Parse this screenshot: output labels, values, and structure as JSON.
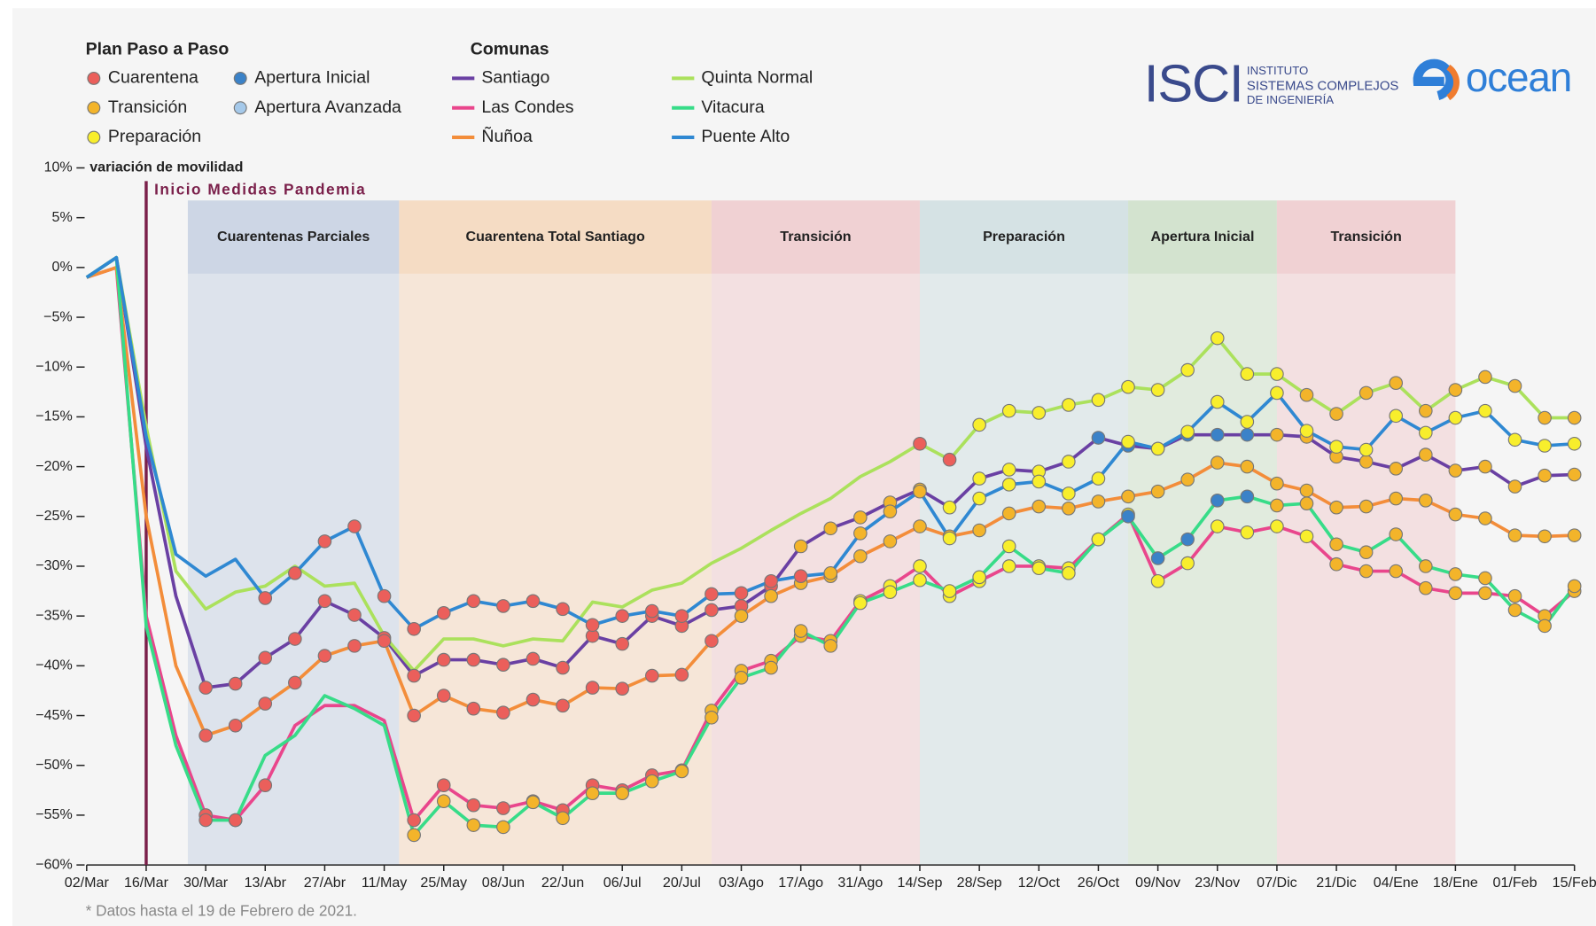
{
  "logos": {
    "isci": "ISCI",
    "isci_lines": [
      "INSTITUTO",
      "SISTEMAS COMPLEJOS",
      "DE INGENIERÍA"
    ],
    "ocean": "ocean"
  },
  "chart_data": {
    "type": "line",
    "note": "* Datos hasta el 19 de Febrero de 2021.",
    "y_label": "variación de movilidad",
    "plan_legend": {
      "title": "Plan Paso a Paso",
      "items": [
        {
          "name": "Cuarentena",
          "color": "#eb5f5b"
        },
        {
          "name": "Transición",
          "color": "#f3b42a"
        },
        {
          "name": "Preparación",
          "color": "#f8ee2c"
        },
        {
          "name": "Apertura Inicial",
          "color": "#3b82c8"
        },
        {
          "name": "Apertura Avanzada",
          "color": "#a5c9ea"
        }
      ]
    },
    "series_legend_title": "Comunas",
    "event": {
      "label": "Inicio Medidas Pandemia",
      "at": 2,
      "color": "#7a1f4a"
    },
    "bands": [
      {
        "label": "Cuarentenas Parciales",
        "start": 3.4,
        "end": 10.5,
        "color": "#c9d3e3"
      },
      {
        "label": "Cuarentena Total Santiago",
        "start": 10.5,
        "end": 21,
        "color": "#f5d9bf"
      },
      {
        "label": "Transición",
        "start": 21,
        "end": 28,
        "color": "#f0cdcf"
      },
      {
        "label": "Preparación",
        "start": 28,
        "end": 35,
        "color": "#d2e0e2"
      },
      {
        "label": "Apertura Inicial",
        "start": 35,
        "end": 40,
        "color": "#cfe1cb"
      },
      {
        "label": "Transición",
        "start": 40,
        "end": 46,
        "color": "#f0cdcf"
      }
    ],
    "categories": [
      "02/Mar",
      null,
      "16/Mar",
      null,
      "30/Mar",
      null,
      "13/Abr",
      null,
      "27/Abr",
      null,
      "11/May",
      null,
      "25/May",
      null,
      "08/Jun",
      null,
      "22/Jun",
      null,
      "06/Jul",
      null,
      "20/Jul",
      null,
      "03/Ago",
      null,
      "17/Ago",
      null,
      "31/Ago",
      null,
      "14/Sep",
      null,
      "28/Sep",
      null,
      "12/Oct",
      null,
      "26/Oct",
      null,
      "09/Nov",
      null,
      "23/Nov",
      null,
      "07/Dic",
      null,
      "21/Dic",
      null,
      "04/Ene",
      null,
      "18/Ene",
      null,
      "01/Feb",
      null,
      "15/Feb"
    ],
    "ylim": [
      -60,
      10
    ],
    "yticks": [
      {
        "value": 10,
        "label": "10%"
      },
      {
        "value": 5,
        "label": "5%"
      },
      {
        "value": 0,
        "label": "0%"
      },
      {
        "value": -5,
        "label": "−5%"
      },
      {
        "value": -10,
        "label": "−10%"
      },
      {
        "value": -15,
        "label": "−15%"
      },
      {
        "value": -20,
        "label": "−20%"
      },
      {
        "value": -25,
        "label": "−25%"
      },
      {
        "value": -30,
        "label": "−30%"
      },
      {
        "value": -35,
        "label": "−35%"
      },
      {
        "value": -40,
        "label": "−40%"
      },
      {
        "value": -45,
        "label": "−45%"
      },
      {
        "value": -50,
        "label": "−50%"
      },
      {
        "value": -55,
        "label": "−55%"
      },
      {
        "value": -60,
        "label": "−60%"
      }
    ],
    "series": [
      {
        "name": "Santiago",
        "color": "#6a40a3",
        "values": [
          -1,
          1,
          -18,
          -33,
          -42.2,
          -41.8,
          -39.2,
          -37.3,
          -33.5,
          -34.9,
          -37.2,
          -41,
          -39.4,
          -39.4,
          -39.9,
          -39.3,
          -40.2,
          -37,
          -37.8,
          -35,
          -36,
          -34.4,
          -34,
          -32,
          -28,
          -26.2,
          -25.1,
          -23.6,
          -22.3,
          -24.1,
          -21.2,
          -20.3,
          -20.5,
          -19.5,
          -17.1,
          -17.9,
          -18.2,
          -16.8,
          -16.8,
          -16.8,
          -16.8,
          -17,
          -19,
          -19.5,
          -20.2,
          -18.8,
          -20.4,
          -20,
          -22,
          -20.9,
          -20.8
        ],
        "phases": [
          null,
          null,
          null,
          null,
          0,
          0,
          0,
          0,
          0,
          0,
          0,
          0,
          0,
          0,
          0,
          0,
          0,
          0,
          0,
          0,
          0,
          0,
          0,
          0,
          1,
          1,
          1,
          1,
          1,
          2,
          2,
          2,
          2,
          2,
          3,
          3,
          3,
          3,
          3,
          3,
          1,
          1,
          1,
          1,
          1,
          1,
          1,
          1,
          1,
          1,
          1
        ]
      },
      {
        "name": "Las Condes",
        "color": "#e9468c",
        "values": [
          -1,
          0,
          -35,
          -47,
          -55,
          -55.5,
          -52,
          -46,
          -44,
          -44,
          -45.5,
          -55.5,
          -52,
          -54,
          -54.3,
          -53.6,
          -54.5,
          -52,
          -52.5,
          -51,
          -50.5,
          -44.5,
          -40.5,
          -39.5,
          -37,
          -37.5,
          -33.5,
          -32,
          -30,
          -33,
          -31.5,
          -30,
          -30,
          -30.2,
          -27.3,
          -24.8,
          -31.5,
          -29.7,
          -26,
          -26.6,
          -26,
          -27,
          -29.8,
          -30.5,
          -30.5,
          -32.2,
          -32.7,
          -32.7,
          -33,
          -35,
          -32.5
        ],
        "phases": [
          null,
          null,
          null,
          null,
          0,
          0,
          0,
          null,
          null,
          null,
          null,
          0,
          0,
          0,
          0,
          0,
          0,
          0,
          0,
          0,
          0,
          1,
          1,
          1,
          1,
          1,
          2,
          2,
          2,
          2,
          2,
          2,
          2,
          2,
          2,
          2,
          2,
          2,
          2,
          2,
          2,
          2,
          1,
          1,
          1,
          1,
          1,
          1,
          1,
          1,
          1
        ]
      },
      {
        "name": "Ñuñoa",
        "color": "#f38d3a",
        "values": [
          -1,
          0,
          -25,
          -40,
          -47,
          -46,
          -43.8,
          -41.7,
          -39,
          -38,
          -37.5,
          -45,
          -43,
          -44.3,
          -44.7,
          -43.4,
          -44,
          -42.2,
          -42.3,
          -41,
          -40.9,
          -37.5,
          -35,
          -33,
          -31.7,
          -31,
          -29,
          -27.5,
          -26,
          -27,
          -26.4,
          -24.7,
          -24,
          -24.2,
          -23.5,
          -23,
          -22.5,
          -21.3,
          -19.6,
          -20,
          -21.7,
          -22.4,
          -24.1,
          -24,
          -23.2,
          -23.4,
          -24.8,
          -25.2,
          -26.9,
          -27,
          -26.9
        ],
        "phases": [
          null,
          null,
          null,
          null,
          0,
          0,
          0,
          0,
          0,
          0,
          0,
          0,
          0,
          0,
          0,
          0,
          0,
          0,
          0,
          0,
          0,
          0,
          1,
          1,
          1,
          1,
          1,
          1,
          1,
          1,
          1,
          1,
          1,
          1,
          1,
          1,
          1,
          1,
          1,
          1,
          1,
          1,
          1,
          1,
          1,
          1,
          1,
          1,
          1,
          1,
          1
        ]
      },
      {
        "name": "Quinta Normal",
        "color": "#abe15c",
        "values": [
          -1,
          1,
          -16,
          -30.5,
          -34.3,
          -32.6,
          -32,
          -30,
          -32,
          -31.7,
          -37,
          -40.5,
          -37.3,
          -37.3,
          -38,
          -37.3,
          -37.5,
          -33.6,
          -34.1,
          -32.4,
          -31.7,
          -29.7,
          -28.2,
          -26.4,
          -24.7,
          -23.2,
          -21,
          -19.5,
          -17.7,
          -19.3,
          -15.8,
          -14.4,
          -14.6,
          -13.8,
          -13.3,
          -12,
          -12.3,
          -10.3,
          -7.1,
          -10.7,
          -10.7,
          -12.8,
          -14.7,
          -12.6,
          -11.6,
          -14.4,
          -12.3,
          -11,
          -11.9,
          -15.1,
          -15.1
        ],
        "phases": [
          null,
          null,
          null,
          null,
          null,
          null,
          null,
          null,
          null,
          null,
          null,
          null,
          null,
          null,
          null,
          null,
          null,
          null,
          null,
          null,
          null,
          null,
          null,
          null,
          null,
          null,
          null,
          null,
          0,
          0,
          2,
          2,
          2,
          2,
          2,
          2,
          2,
          2,
          2,
          2,
          2,
          1,
          1,
          1,
          1,
          1,
          1,
          1,
          1,
          1,
          1
        ]
      },
      {
        "name": "Vitacura",
        "color": "#37dc88",
        "values": [
          -1,
          1,
          -36,
          -48,
          -55.5,
          -55.5,
          -49,
          -47,
          -43,
          -44.3,
          -46,
          -57,
          -53.6,
          -56,
          -56.2,
          -53.7,
          -55.3,
          -52.8,
          -52.8,
          -51.6,
          -50.6,
          -45.2,
          -41.2,
          -40.2,
          -36.5,
          -38,
          -33.7,
          -32.6,
          -31.4,
          -32.5,
          -31.1,
          -28,
          -30.2,
          -30.7,
          -27.3,
          -25,
          -29.2,
          -27.3,
          -23.4,
          -23,
          -23.9,
          -23.7,
          -27.8,
          -28.6,
          -26.8,
          -30,
          -30.8,
          -31.2,
          -34.4,
          -36,
          -32
        ],
        "phases": [
          null,
          null,
          null,
          null,
          0,
          0,
          null,
          null,
          null,
          null,
          null,
          1,
          1,
          1,
          1,
          1,
          1,
          1,
          1,
          1,
          1,
          1,
          1,
          1,
          1,
          1,
          2,
          2,
          2,
          2,
          2,
          2,
          2,
          2,
          2,
          3,
          3,
          3,
          3,
          3,
          1,
          1,
          1,
          1,
          1,
          1,
          1,
          1,
          1,
          1,
          1
        ]
      },
      {
        "name": "Puente Alto",
        "color": "#2f88d2",
        "values": [
          -1,
          1,
          -17,
          -28.8,
          -31,
          -29.3,
          -33.2,
          -30.7,
          -27.5,
          -26,
          -33,
          -36.3,
          -34.7,
          -33.5,
          -34,
          -33.5,
          -34.3,
          -35.9,
          -35,
          -34.5,
          -35,
          -32.8,
          -32.7,
          -31.5,
          -31,
          -30.7,
          -26.7,
          -24.5,
          -22.5,
          -27.2,
          -23.2,
          -21.8,
          -21.5,
          -22.7,
          -21.2,
          -17.5,
          -18.2,
          -16.5,
          -13.5,
          -15.5,
          -12.6,
          -16.4,
          -18,
          -18.3,
          -14.9,
          -16.6,
          -15.1,
          -14.4,
          -17.3,
          -17.9,
          -17.7
        ],
        "phases": [
          null,
          null,
          null,
          null,
          null,
          null,
          0,
          0,
          0,
          0,
          0,
          0,
          0,
          0,
          0,
          0,
          0,
          0,
          0,
          0,
          0,
          0,
          0,
          0,
          0,
          1,
          1,
          1,
          1,
          2,
          2,
          2,
          2,
          2,
          2,
          2,
          2,
          2,
          2,
          2,
          2,
          2,
          2,
          2,
          2,
          2,
          2,
          2,
          2,
          2,
          2
        ]
      }
    ]
  }
}
